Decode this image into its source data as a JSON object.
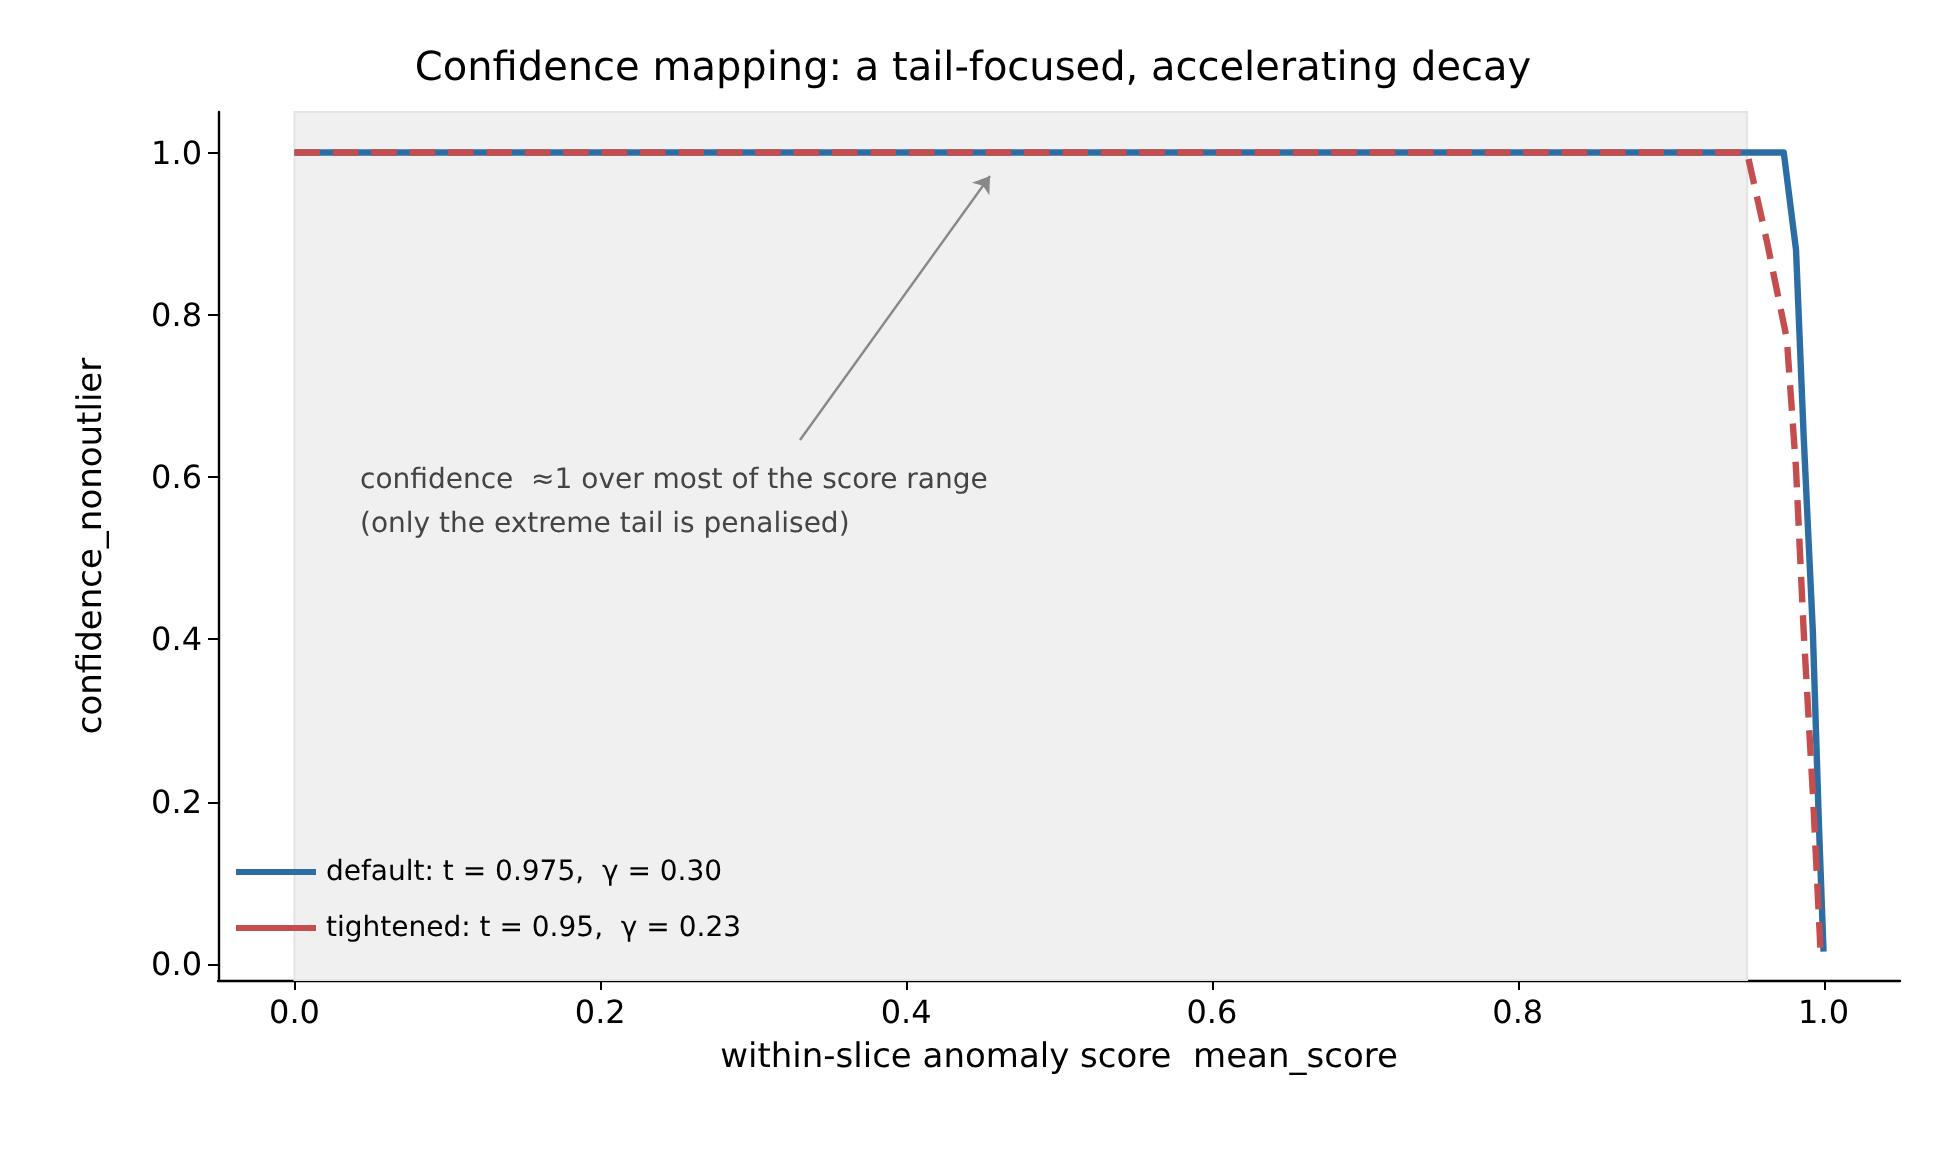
{
  "chart_data": {
    "type": "line",
    "title": "Confidence mapping: a tail-focused, accelerating decay",
    "xlabel": "within-slice anomaly score  mean_score",
    "ylabel": "confidence_nonoutlier",
    "xlim": [
      -0.05,
      1.05
    ],
    "ylim": [
      -0.02,
      1.05
    ],
    "xticks": [
      {
        "value": 0,
        "label": "0.0"
      },
      {
        "value": 0.2,
        "label": "0.2"
      },
      {
        "value": 0.4,
        "label": "0.4"
      },
      {
        "value": 0.6,
        "label": "0.6"
      },
      {
        "value": 0.8,
        "label": "0.8"
      },
      {
        "value": 1,
        "label": "1.0"
      }
    ],
    "yticks": [
      {
        "value": 0,
        "label": "0.0"
      },
      {
        "value": 0.2,
        "label": "0.2"
      },
      {
        "value": 0.4,
        "label": "0.4"
      },
      {
        "value": 0.6,
        "label": "0.6"
      },
      {
        "value": 0.8,
        "label": "0.8"
      },
      {
        "value": 1,
        "label": "1.0"
      }
    ],
    "series": [
      {
        "name": "default: t = 0.975,  γ = 0.30",
        "color": "#2c6ea4",
        "line_style": "solid",
        "x": [
          0,
          0.2,
          0.4,
          0.6,
          0.8,
          0.974,
          0.982,
          0.987,
          0.993,
          0.997,
          1.0
        ],
        "values": [
          1,
          1,
          1,
          1,
          1,
          1,
          0.88,
          0.65,
          0.41,
          0.17,
          0.015
        ]
      },
      {
        "name": "tightened: t = 0.95,  γ = 0.23",
        "color": "#c44e4e",
        "line_style": "dashed",
        "x": [
          0,
          0.2,
          0.4,
          0.6,
          0.8,
          0.95,
          0.963,
          0.976,
          0.982,
          0.987,
          0.993,
          0.998
        ],
        "values": [
          1,
          1,
          1,
          1,
          1,
          1,
          0.89,
          0.77,
          0.61,
          0.41,
          0.21,
          0.017
        ]
      }
    ],
    "bands": [
      {
        "axis": "x",
        "from": 0,
        "to": 0.95,
        "color": "#f0f0f0"
      }
    ],
    "annotations": [
      "confidence  ≈1 over most of the score range\n(only the extreme tail is penalised)"
    ],
    "grid": false,
    "legend": "bottom left",
    "marker": "none"
  }
}
